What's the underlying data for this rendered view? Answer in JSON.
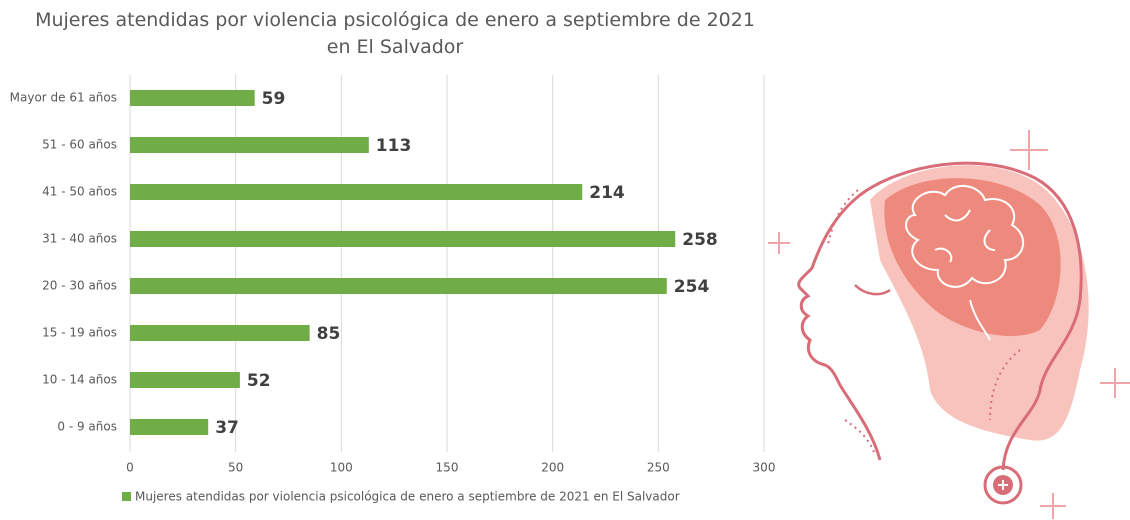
{
  "chart_data": {
    "type": "bar",
    "orientation": "horizontal",
    "title": "Mujeres atendidas por violencia psicológica de enero a septiembre de 2021 en El Salvador",
    "categories": [
      "Mayor de 61 años",
      "51 - 60 años",
      "41 - 50 años",
      "31 - 40 años",
      "20 - 30 años",
      "15 - 19 años",
      "10 - 14 años",
      "0 - 9 años"
    ],
    "series": [
      {
        "name": "Mujeres atendidas por violencia psicológica de enero a septiembre de 2021 en El Salvador",
        "color": "#70ad47",
        "values": [
          59,
          113,
          214,
          258,
          254,
          85,
          52,
          37
        ]
      }
    ],
    "xlim": [
      0,
      300
    ],
    "xticks": [
      0,
      50,
      100,
      150,
      200,
      250,
      300
    ],
    "grid": true,
    "legend": "bottom"
  }
}
